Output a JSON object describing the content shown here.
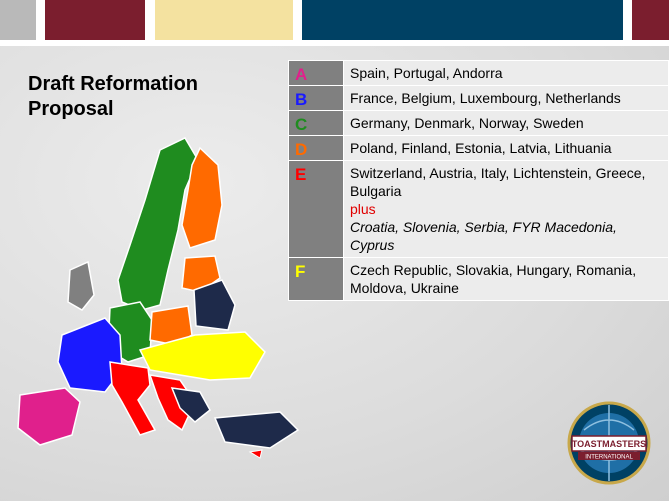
{
  "slide": {
    "title": "Draft Reformation\nProposal"
  },
  "regions": [
    {
      "letter": "A",
      "color": "#e0208c",
      "countries": "Spain, Portugal, Andorra"
    },
    {
      "letter": "B",
      "color": "#1a1aff",
      "countries": "France, Belgium, Luxembourg, Netherlands"
    },
    {
      "letter": "C",
      "color": "#1f8c1f",
      "countries": "Germany, Denmark, Norway, Sweden"
    },
    {
      "letter": "D",
      "color": "#ff6a00",
      "countries": "Poland, Finland, Estonia, Latvia, Lithuania"
    },
    {
      "letter": "E",
      "color": "#ff0000",
      "countries": "Switzerland, Austria, Italy, Lichtenstein, Greece, Bulgaria",
      "plus_label": "plus",
      "plus_countries": "Croatia, Slovenia, Serbia, FYR Macedonia, Cyprus"
    },
    {
      "letter": "F",
      "color": "#ffff00",
      "countries": "Czech Republic, Slovakia, Hungary, Romania, Moldova, Ukraine"
    }
  ],
  "logo": {
    "top_text": "TOASTMASTERS",
    "bottom_text": "INTERNATIONAL",
    "color": "#7b1e2e"
  },
  "map": {
    "colors": {
      "A": "#e0208c",
      "B": "#1a1aff",
      "C": "#1f8c1f",
      "D": "#ff6a00",
      "E": "#ff0000",
      "F": "#ffff00",
      "other": "#1e2a4a"
    }
  }
}
